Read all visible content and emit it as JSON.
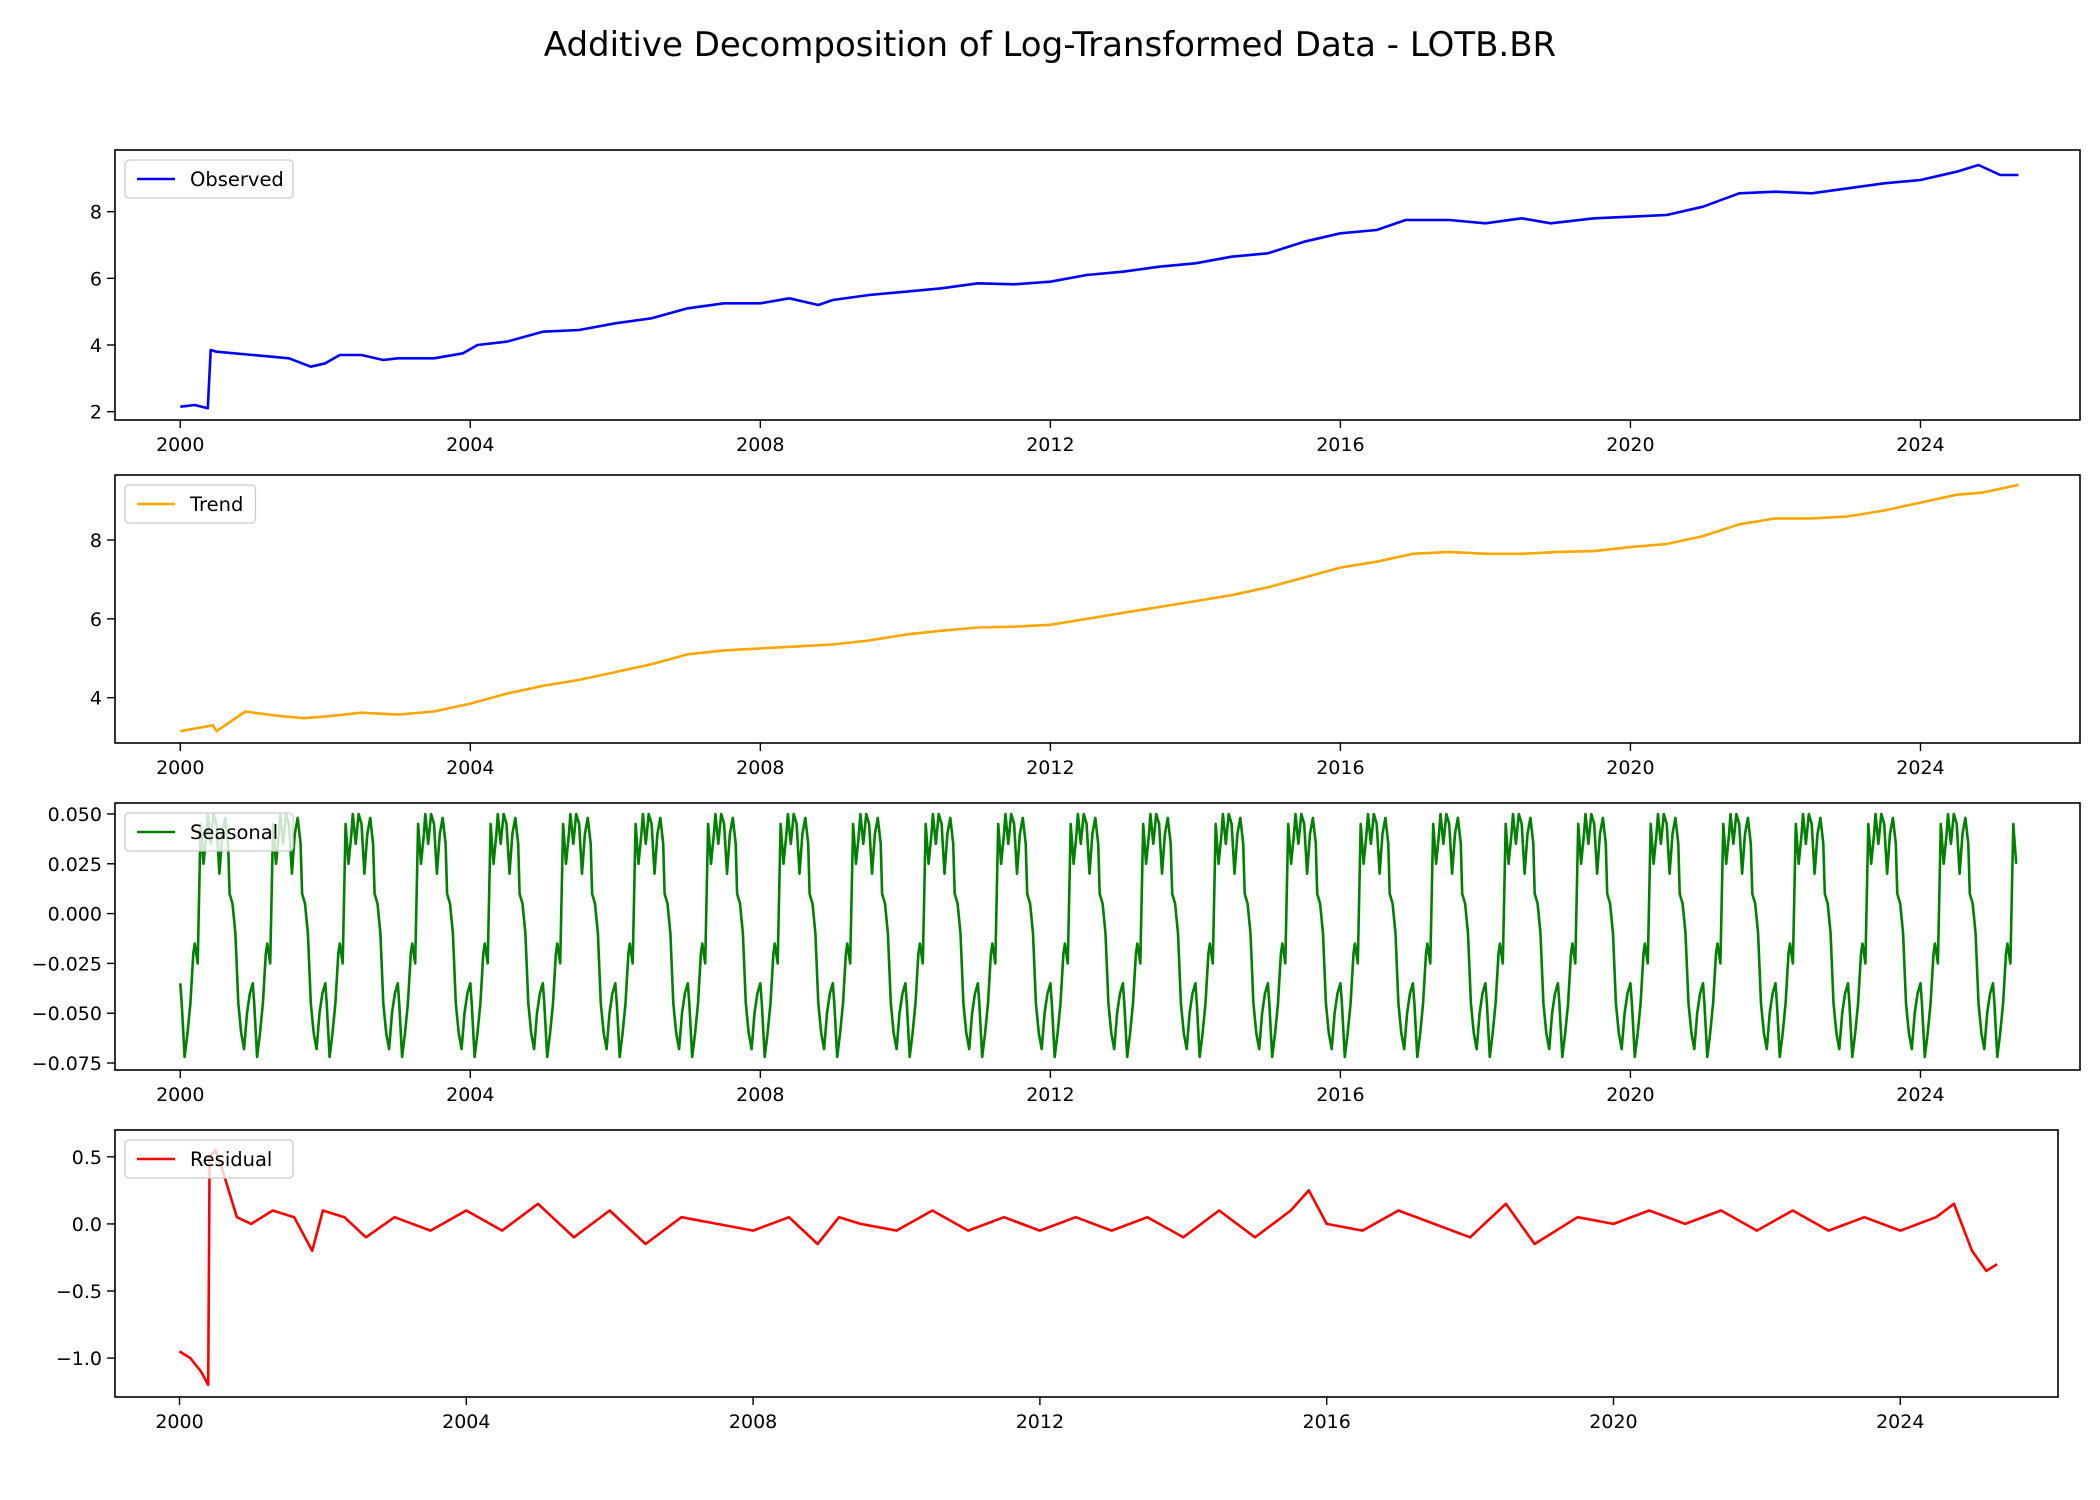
{
  "title": "Additive Decomposition of Log-Transformed Data - LOTB.BR",
  "chart_data": [
    {
      "type": "line",
      "name": "Observed",
      "color": "#0000ff",
      "legend": "upper-left",
      "xlim": [
        1999.1,
        2026.2
      ],
      "ylim": [
        1.75,
        9.85
      ],
      "xticks": [
        2000,
        2004,
        2008,
        2012,
        2016,
        2020,
        2024
      ],
      "yticks": [
        2,
        4,
        6,
        8
      ],
      "ytick_labels": [
        "2",
        "4",
        "6",
        "8"
      ],
      "x": [
        2000.0,
        2000.2,
        2000.38,
        2000.42,
        2000.5,
        2001.0,
        2001.5,
        2001.8,
        2002.0,
        2002.2,
        2002.5,
        2002.8,
        2003.0,
        2003.5,
        2003.9,
        2004.1,
        2004.5,
        2005.0,
        2005.5,
        2006.0,
        2006.5,
        2007.0,
        2007.5,
        2008.0,
        2008.4,
        2008.8,
        2009.0,
        2009.5,
        2010.0,
        2010.5,
        2011.0,
        2011.5,
        2012.0,
        2012.5,
        2013.0,
        2013.5,
        2014.0,
        2014.5,
        2015.0,
        2015.5,
        2016.0,
        2016.5,
        2016.9,
        2017.5,
        2018.0,
        2018.5,
        2018.9,
        2019.5,
        2020.0,
        2020.5,
        2021.0,
        2021.5,
        2022.0,
        2022.5,
        2023.0,
        2023.5,
        2024.0,
        2024.5,
        2024.8,
        2025.1,
        2025.35
      ],
      "y": [
        2.15,
        2.2,
        2.1,
        3.85,
        3.8,
        3.7,
        3.6,
        3.35,
        3.45,
        3.7,
        3.7,
        3.55,
        3.6,
        3.6,
        3.75,
        4.0,
        4.1,
        4.4,
        4.45,
        4.65,
        4.8,
        5.1,
        5.25,
        5.25,
        5.4,
        5.2,
        5.35,
        5.5,
        5.6,
        5.7,
        5.85,
        5.82,
        5.9,
        6.1,
        6.2,
        6.35,
        6.45,
        6.65,
        6.75,
        7.1,
        7.35,
        7.45,
        7.75,
        7.75,
        7.65,
        7.8,
        7.65,
        7.8,
        7.85,
        7.9,
        8.15,
        8.55,
        8.6,
        8.55,
        8.7,
        8.85,
        8.95,
        9.2,
        9.4,
        9.1,
        9.1
      ]
    },
    {
      "type": "line",
      "name": "Trend",
      "color": "#ffa500",
      "legend": "upper-left",
      "xlim": [
        1999.1,
        2026.2
      ],
      "ylim": [
        2.85,
        9.65
      ],
      "xticks": [
        2000,
        2004,
        2008,
        2012,
        2016,
        2020,
        2024
      ],
      "yticks": [
        4,
        6,
        8
      ],
      "ytick_labels": [
        "4",
        "6",
        "8"
      ],
      "x": [
        2000.0,
        2000.45,
        2000.5,
        2000.9,
        2001.3,
        2001.7,
        2002.0,
        2002.5,
        2003.0,
        2003.5,
        2004.0,
        2004.5,
        2005.0,
        2005.5,
        2006.0,
        2006.5,
        2007.0,
        2007.5,
        2008.0,
        2008.5,
        2009.0,
        2009.5,
        2010.0,
        2010.5,
        2011.0,
        2011.5,
        2012.0,
        2012.5,
        2013.0,
        2013.5,
        2014.0,
        2014.5,
        2015.0,
        2015.5,
        2016.0,
        2016.5,
        2017.0,
        2017.5,
        2018.0,
        2018.5,
        2019.0,
        2019.5,
        2020.0,
        2020.5,
        2021.0,
        2021.5,
        2022.0,
        2022.5,
        2023.0,
        2023.5,
        2024.0,
        2024.5,
        2024.85,
        2025.35
      ],
      "y": [
        3.15,
        3.3,
        3.15,
        3.65,
        3.55,
        3.48,
        3.52,
        3.62,
        3.57,
        3.65,
        3.85,
        4.1,
        4.3,
        4.45,
        4.65,
        4.85,
        5.1,
        5.2,
        5.25,
        5.3,
        5.35,
        5.45,
        5.6,
        5.7,
        5.78,
        5.8,
        5.85,
        6.0,
        6.15,
        6.3,
        6.45,
        6.6,
        6.8,
        7.05,
        7.3,
        7.45,
        7.65,
        7.7,
        7.65,
        7.65,
        7.7,
        7.72,
        7.82,
        7.9,
        8.1,
        8.4,
        8.55,
        8.55,
        8.6,
        8.75,
        8.95,
        9.15,
        9.2,
        9.4
      ]
    },
    {
      "type": "line",
      "name": "Seasonal",
      "color": "#008000",
      "legend": "upper-left",
      "xlim": [
        1999.1,
        2026.2
      ],
      "ylim": [
        -0.0785,
        0.0555
      ],
      "xticks": [
        2000,
        2004,
        2008,
        2012,
        2016,
        2020,
        2024
      ],
      "yticks": [
        -0.075,
        -0.05,
        -0.025,
        0.0,
        0.025,
        0.05
      ],
      "ytick_labels": [
        "−0.075",
        "−0.050",
        "−0.025",
        "0.000",
        "0.025",
        "0.050"
      ],
      "start_year": 2000.0,
      "end_year": 2025.35,
      "period": 1.0,
      "cycle_phase": [
        0.0,
        0.02,
        0.06,
        0.1,
        0.14,
        0.18,
        0.2,
        0.24,
        0.28,
        0.32,
        0.36,
        0.38,
        0.42,
        0.46,
        0.5,
        0.54,
        0.58,
        0.62,
        0.66,
        0.68,
        0.72,
        0.76,
        0.8,
        0.84,
        0.88,
        0.92,
        0.96,
        1.0
      ],
      "cycle_values": [
        -0.035,
        -0.045,
        -0.072,
        -0.06,
        -0.045,
        -0.02,
        -0.015,
        -0.025,
        0.045,
        0.025,
        0.04,
        0.05,
        0.035,
        0.05,
        0.045,
        0.02,
        0.04,
        0.048,
        0.035,
        0.01,
        0.005,
        -0.01,
        -0.045,
        -0.06,
        -0.068,
        -0.05,
        -0.04,
        -0.035
      ]
    },
    {
      "type": "line",
      "name": "Residual",
      "color": "#ff0000",
      "legend": "upper-left",
      "xlim": [
        1999.1,
        2026.2
      ],
      "ylim": [
        -1.29,
        0.7
      ],
      "xticks": [
        2000,
        2004,
        2008,
        2012,
        2016,
        2020,
        2024
      ],
      "yticks": [
        -1.0,
        -0.5,
        0.0,
        0.5
      ],
      "ytick_labels": [
        "−1.0",
        "−0.5",
        "0.0",
        "0.5"
      ],
      "x": [
        2000.0,
        2000.15,
        2000.3,
        2000.4,
        2000.42,
        2000.5,
        2000.6,
        2000.8,
        2001.0,
        2001.3,
        2001.6,
        2001.85,
        2002.0,
        2002.3,
        2002.6,
        2003.0,
        2003.5,
        2004.0,
        2004.5,
        2005.0,
        2005.5,
        2006.0,
        2006.5,
        2007.0,
        2007.5,
        2008.0,
        2008.5,
        2008.9,
        2009.2,
        2009.5,
        2010.0,
        2010.5,
        2011.0,
        2011.5,
        2012.0,
        2012.5,
        2013.0,
        2013.5,
        2014.0,
        2014.5,
        2015.0,
        2015.5,
        2015.75,
        2016.0,
        2016.5,
        2017.0,
        2017.5,
        2018.0,
        2018.5,
        2018.9,
        2019.5,
        2020.0,
        2020.5,
        2021.0,
        2021.5,
        2022.0,
        2022.5,
        2023.0,
        2023.5,
        2024.0,
        2024.5,
        2024.75,
        2025.0,
        2025.2,
        2025.35
      ],
      "y": [
        -0.95,
        -1.0,
        -1.1,
        -1.2,
        0.5,
        0.55,
        0.4,
        0.05,
        0.0,
        0.1,
        0.05,
        -0.2,
        0.1,
        0.05,
        -0.1,
        0.05,
        -0.05,
        0.1,
        -0.05,
        0.15,
        -0.1,
        0.1,
        -0.15,
        0.05,
        0.0,
        -0.05,
        0.05,
        -0.15,
        0.05,
        0.0,
        -0.05,
        0.1,
        -0.05,
        0.05,
        -0.05,
        0.05,
        -0.05,
        0.05,
        -0.1,
        0.1,
        -0.1,
        0.1,
        0.25,
        0.0,
        -0.05,
        0.1,
        0.0,
        -0.1,
        0.15,
        -0.15,
        0.05,
        0.0,
        0.1,
        0.0,
        0.1,
        -0.05,
        0.1,
        -0.05,
        0.05,
        -0.05,
        0.05,
        0.15,
        -0.2,
        -0.35,
        -0.3
      ]
    }
  ]
}
